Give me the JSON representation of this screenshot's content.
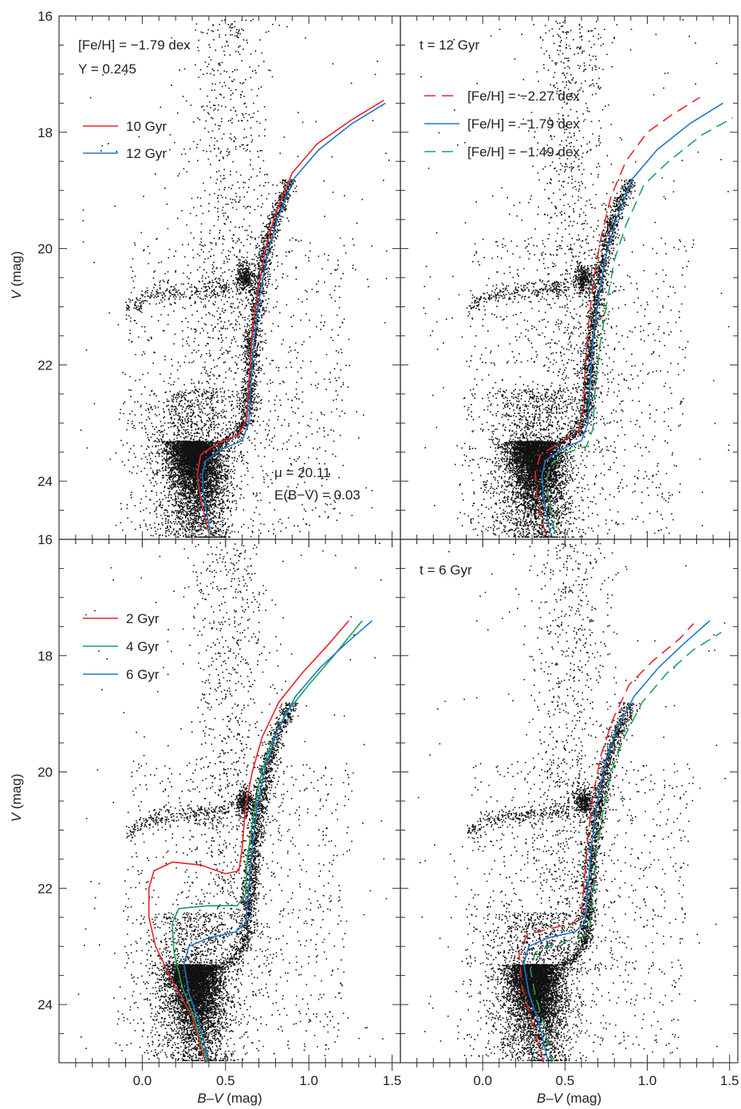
{
  "chart_data": {
    "type": "scatter",
    "description_layout": "2x2 grid of color-magnitude diagrams with isochrones",
    "axes": {
      "xlabel": {
        "italic": "B",
        "rest": "–",
        "italic2": "V",
        "unit": " (mag)"
      },
      "ylabel": {
        "italic": "V",
        "unit": " (mag)"
      },
      "xlim": [
        -0.5,
        1.55
      ],
      "ylim_top": [
        16,
        25
      ],
      "ylim_bottom": [
        16,
        25
      ],
      "x_ticks": [
        0.0,
        0.5,
        1.0,
        1.5
      ],
      "x_tick_labels": [
        "0.0",
        "0.5",
        "1.0",
        "1.5"
      ],
      "y_ticks": [
        16,
        18,
        20,
        22,
        24
      ],
      "y_tick_labels": [
        "16",
        "18",
        "20",
        "22",
        "24"
      ],
      "y_ticks_bottom": [
        18,
        20,
        22,
        24
      ],
      "y_tick_labels_bottom": [
        "18",
        "20",
        "22",
        "24"
      ],
      "x_minor_step": 0.1,
      "y_minor_step": 0.5
    },
    "colors": {
      "red": "#e8232a",
      "blue": "#1f78c8",
      "green": "#1aa35a",
      "stars": "#111111"
    },
    "panels": [
      {
        "id": "top-left",
        "texts": [
          "[Fe/H] = −1.79 dex",
          "Y = 0.245"
        ],
        "annotation": [
          "μ = 20.11",
          "E(B−V) = 0.03"
        ],
        "legend": [
          {
            "label": "10 Gyr",
            "color": "red",
            "dashed": false
          },
          {
            "label": "12 Gyr",
            "color": "blue",
            "dashed": false
          }
        ],
        "isochrones": [
          {
            "name": "10 Gyr",
            "color": "red",
            "dashed": false,
            "points": [
              [
                0.4,
                24.9
              ],
              [
                0.35,
                24.3
              ],
              [
                0.33,
                23.9
              ],
              [
                0.35,
                23.55
              ],
              [
                0.45,
                23.35
              ],
              [
                0.58,
                23.2
              ],
              [
                0.63,
                22.9
              ],
              [
                0.64,
                22.3
              ],
              [
                0.66,
                21.5
              ],
              [
                0.69,
                20.8
              ],
              [
                0.74,
                20.0
              ],
              [
                0.8,
                19.4
              ],
              [
                0.9,
                18.7
              ],
              [
                1.05,
                18.2
              ],
              [
                1.25,
                17.8
              ],
              [
                1.45,
                17.45
              ]
            ]
          },
          {
            "name": "12 Gyr",
            "color": "blue",
            "dashed": false,
            "points": [
              [
                0.41,
                24.9
              ],
              [
                0.37,
                24.3
              ],
              [
                0.36,
                23.9
              ],
              [
                0.38,
                23.65
              ],
              [
                0.48,
                23.45
              ],
              [
                0.6,
                23.3
              ],
              [
                0.64,
                23.0
              ],
              [
                0.65,
                22.4
              ],
              [
                0.67,
                21.6
              ],
              [
                0.7,
                20.9
              ],
              [
                0.75,
                20.1
              ],
              [
                0.81,
                19.5
              ],
              [
                0.91,
                18.8
              ],
              [
                1.06,
                18.3
              ],
              [
                1.26,
                17.85
              ],
              [
                1.46,
                17.5
              ]
            ]
          }
        ]
      },
      {
        "id": "top-right",
        "texts": [
          "t = 12 Gyr"
        ],
        "annotation": [],
        "legend": [
          {
            "label": "[Fe/H] = −2.27 dex",
            "color": "red",
            "dashed": true
          },
          {
            "label": "[Fe/H] = −1.79 dex",
            "color": "blue",
            "dashed": false
          },
          {
            "label": "[Fe/H] = −1.49 dex",
            "color": "green",
            "dashed": true
          }
        ],
        "isochrones": [
          {
            "name": "[Fe/H] = −2.27 dex",
            "color": "red",
            "dashed": true,
            "points": [
              [
                0.38,
                24.9
              ],
              [
                0.33,
                24.3
              ],
              [
                0.32,
                23.85
              ],
              [
                0.35,
                23.55
              ],
              [
                0.46,
                23.35
              ],
              [
                0.58,
                23.15
              ],
              [
                0.61,
                22.8
              ],
              [
                0.62,
                22.2
              ],
              [
                0.64,
                21.4
              ],
              [
                0.67,
                20.6
              ],
              [
                0.72,
                19.8
              ],
              [
                0.78,
                19.1
              ],
              [
                0.87,
                18.5
              ],
              [
                1.0,
                18.0
              ],
              [
                1.15,
                17.7
              ],
              [
                1.32,
                17.4
              ]
            ]
          },
          {
            "name": "[Fe/H] = −1.79 dex",
            "color": "blue",
            "dashed": false,
            "points": [
              [
                0.41,
                24.9
              ],
              [
                0.37,
                24.3
              ],
              [
                0.36,
                23.9
              ],
              [
                0.38,
                23.65
              ],
              [
                0.48,
                23.45
              ],
              [
                0.6,
                23.3
              ],
              [
                0.64,
                23.0
              ],
              [
                0.65,
                22.4
              ],
              [
                0.67,
                21.6
              ],
              [
                0.7,
                20.9
              ],
              [
                0.75,
                20.1
              ],
              [
                0.81,
                19.5
              ],
              [
                0.91,
                18.8
              ],
              [
                1.06,
                18.3
              ],
              [
                1.26,
                17.85
              ],
              [
                1.46,
                17.5
              ]
            ]
          },
          {
            "name": "[Fe/H] = −1.49 dex",
            "color": "green",
            "dashed": true,
            "points": [
              [
                0.44,
                24.9
              ],
              [
                0.4,
                24.3
              ],
              [
                0.39,
                23.95
              ],
              [
                0.42,
                23.7
              ],
              [
                0.52,
                23.5
              ],
              [
                0.63,
                23.4
              ],
              [
                0.67,
                23.1
              ],
              [
                0.68,
                22.5
              ],
              [
                0.71,
                21.7
              ],
              [
                0.75,
                21.0
              ],
              [
                0.8,
                20.2
              ],
              [
                0.87,
                19.6
              ],
              [
                0.98,
                18.9
              ],
              [
                1.13,
                18.5
              ],
              [
                1.33,
                18.05
              ],
              [
                1.52,
                17.75
              ]
            ]
          }
        ]
      },
      {
        "id": "bottom-left",
        "texts": [],
        "annotation": [],
        "legend": [
          {
            "label": "2 Gyr",
            "color": "red",
            "dashed": false
          },
          {
            "label": "4 Gyr",
            "color": "green",
            "dashed": false
          },
          {
            "label": "6 Gyr",
            "color": "blue",
            "dashed": false
          }
        ],
        "isochrones": [
          {
            "name": "2 Gyr",
            "color": "red",
            "dashed": false,
            "points": [
              [
                0.38,
                25.0
              ],
              [
                0.3,
                24.2
              ],
              [
                0.18,
                23.6
              ],
              [
                0.08,
                23.0
              ],
              [
                0.04,
                22.5
              ],
              [
                0.04,
                22.0
              ],
              [
                0.07,
                21.7
              ],
              [
                0.18,
                21.55
              ],
              [
                0.35,
                21.6
              ],
              [
                0.5,
                21.75
              ],
              [
                0.58,
                21.7
              ],
              [
                0.6,
                21.3
              ],
              [
                0.62,
                20.6
              ],
              [
                0.66,
                20.0
              ],
              [
                0.72,
                19.4
              ],
              [
                0.82,
                18.8
              ],
              [
                0.96,
                18.3
              ],
              [
                1.12,
                17.8
              ],
              [
                1.24,
                17.4
              ]
            ]
          },
          {
            "name": "4 Gyr",
            "color": "green",
            "dashed": false,
            "points": [
              [
                0.39,
                25.0
              ],
              [
                0.32,
                24.3
              ],
              [
                0.24,
                23.7
              ],
              [
                0.19,
                23.1
              ],
              [
                0.18,
                22.6
              ],
              [
                0.22,
                22.35
              ],
              [
                0.4,
                22.3
              ],
              [
                0.57,
                22.3
              ],
              [
                0.62,
                22.1
              ],
              [
                0.63,
                21.5
              ],
              [
                0.66,
                20.9
              ],
              [
                0.7,
                20.2
              ],
              [
                0.76,
                19.6
              ],
              [
                0.86,
                19.0
              ],
              [
                1.0,
                18.5
              ],
              [
                1.15,
                18.0
              ],
              [
                1.32,
                17.4
              ]
            ]
          },
          {
            "name": "6 Gyr",
            "color": "blue",
            "dashed": false,
            "points": [
              [
                0.4,
                25.0
              ],
              [
                0.34,
                24.3
              ],
              [
                0.28,
                23.8
              ],
              [
                0.25,
                23.3
              ],
              [
                0.28,
                23.0
              ],
              [
                0.4,
                22.85
              ],
              [
                0.56,
                22.75
              ],
              [
                0.62,
                22.6
              ],
              [
                0.64,
                22.0
              ],
              [
                0.66,
                21.3
              ],
              [
                0.69,
                20.6
              ],
              [
                0.74,
                19.9
              ],
              [
                0.81,
                19.3
              ],
              [
                0.92,
                18.7
              ],
              [
                1.07,
                18.2
              ],
              [
                1.22,
                17.8
              ],
              [
                1.38,
                17.4
              ]
            ]
          }
        ]
      },
      {
        "id": "bottom-right",
        "texts": [
          "t = 6 Gyr"
        ],
        "annotation": [],
        "legend": [],
        "isochrones": [
          {
            "name": "[Fe/H] = −2.27 dex",
            "color": "red",
            "dashed": true,
            "points": [
              [
                0.37,
                25.0
              ],
              [
                0.3,
                24.3
              ],
              [
                0.24,
                23.7
              ],
              [
                0.22,
                23.1
              ],
              [
                0.27,
                22.8
              ],
              [
                0.4,
                22.7
              ],
              [
                0.55,
                22.6
              ],
              [
                0.6,
                22.4
              ],
              [
                0.62,
                21.8
              ],
              [
                0.64,
                21.1
              ],
              [
                0.67,
                20.4
              ],
              [
                0.72,
                19.7
              ],
              [
                0.79,
                19.1
              ],
              [
                0.89,
                18.5
              ],
              [
                1.03,
                18.1
              ],
              [
                1.2,
                17.7
              ],
              [
                1.28,
                17.45
              ]
            ]
          },
          {
            "name": "[Fe/H] = −1.79 dex",
            "color": "blue",
            "dashed": false,
            "points": [
              [
                0.4,
                25.0
              ],
              [
                0.34,
                24.3
              ],
              [
                0.28,
                23.8
              ],
              [
                0.25,
                23.3
              ],
              [
                0.28,
                23.0
              ],
              [
                0.4,
                22.85
              ],
              [
                0.56,
                22.75
              ],
              [
                0.62,
                22.6
              ],
              [
                0.64,
                22.0
              ],
              [
                0.66,
                21.3
              ],
              [
                0.69,
                20.6
              ],
              [
                0.74,
                19.9
              ],
              [
                0.81,
                19.3
              ],
              [
                0.92,
                18.7
              ],
              [
                1.07,
                18.2
              ],
              [
                1.22,
                17.8
              ],
              [
                1.38,
                17.4
              ]
            ]
          },
          {
            "name": "[Fe/H] = −1.49 dex",
            "color": "green",
            "dashed": true,
            "points": [
              [
                0.42,
                25.0
              ],
              [
                0.37,
                24.3
              ],
              [
                0.32,
                23.85
              ],
              [
                0.29,
                23.4
              ],
              [
                0.32,
                23.1
              ],
              [
                0.44,
                22.95
              ],
              [
                0.6,
                22.85
              ],
              [
                0.65,
                22.7
              ],
              [
                0.67,
                22.1
              ],
              [
                0.69,
                21.4
              ],
              [
                0.73,
                20.7
              ],
              [
                0.78,
                20.0
              ],
              [
                0.86,
                19.4
              ],
              [
                0.97,
                18.8
              ],
              [
                1.12,
                18.3
              ],
              [
                1.28,
                17.9
              ],
              [
                1.45,
                17.6
              ]
            ]
          }
        ]
      }
    ]
  }
}
